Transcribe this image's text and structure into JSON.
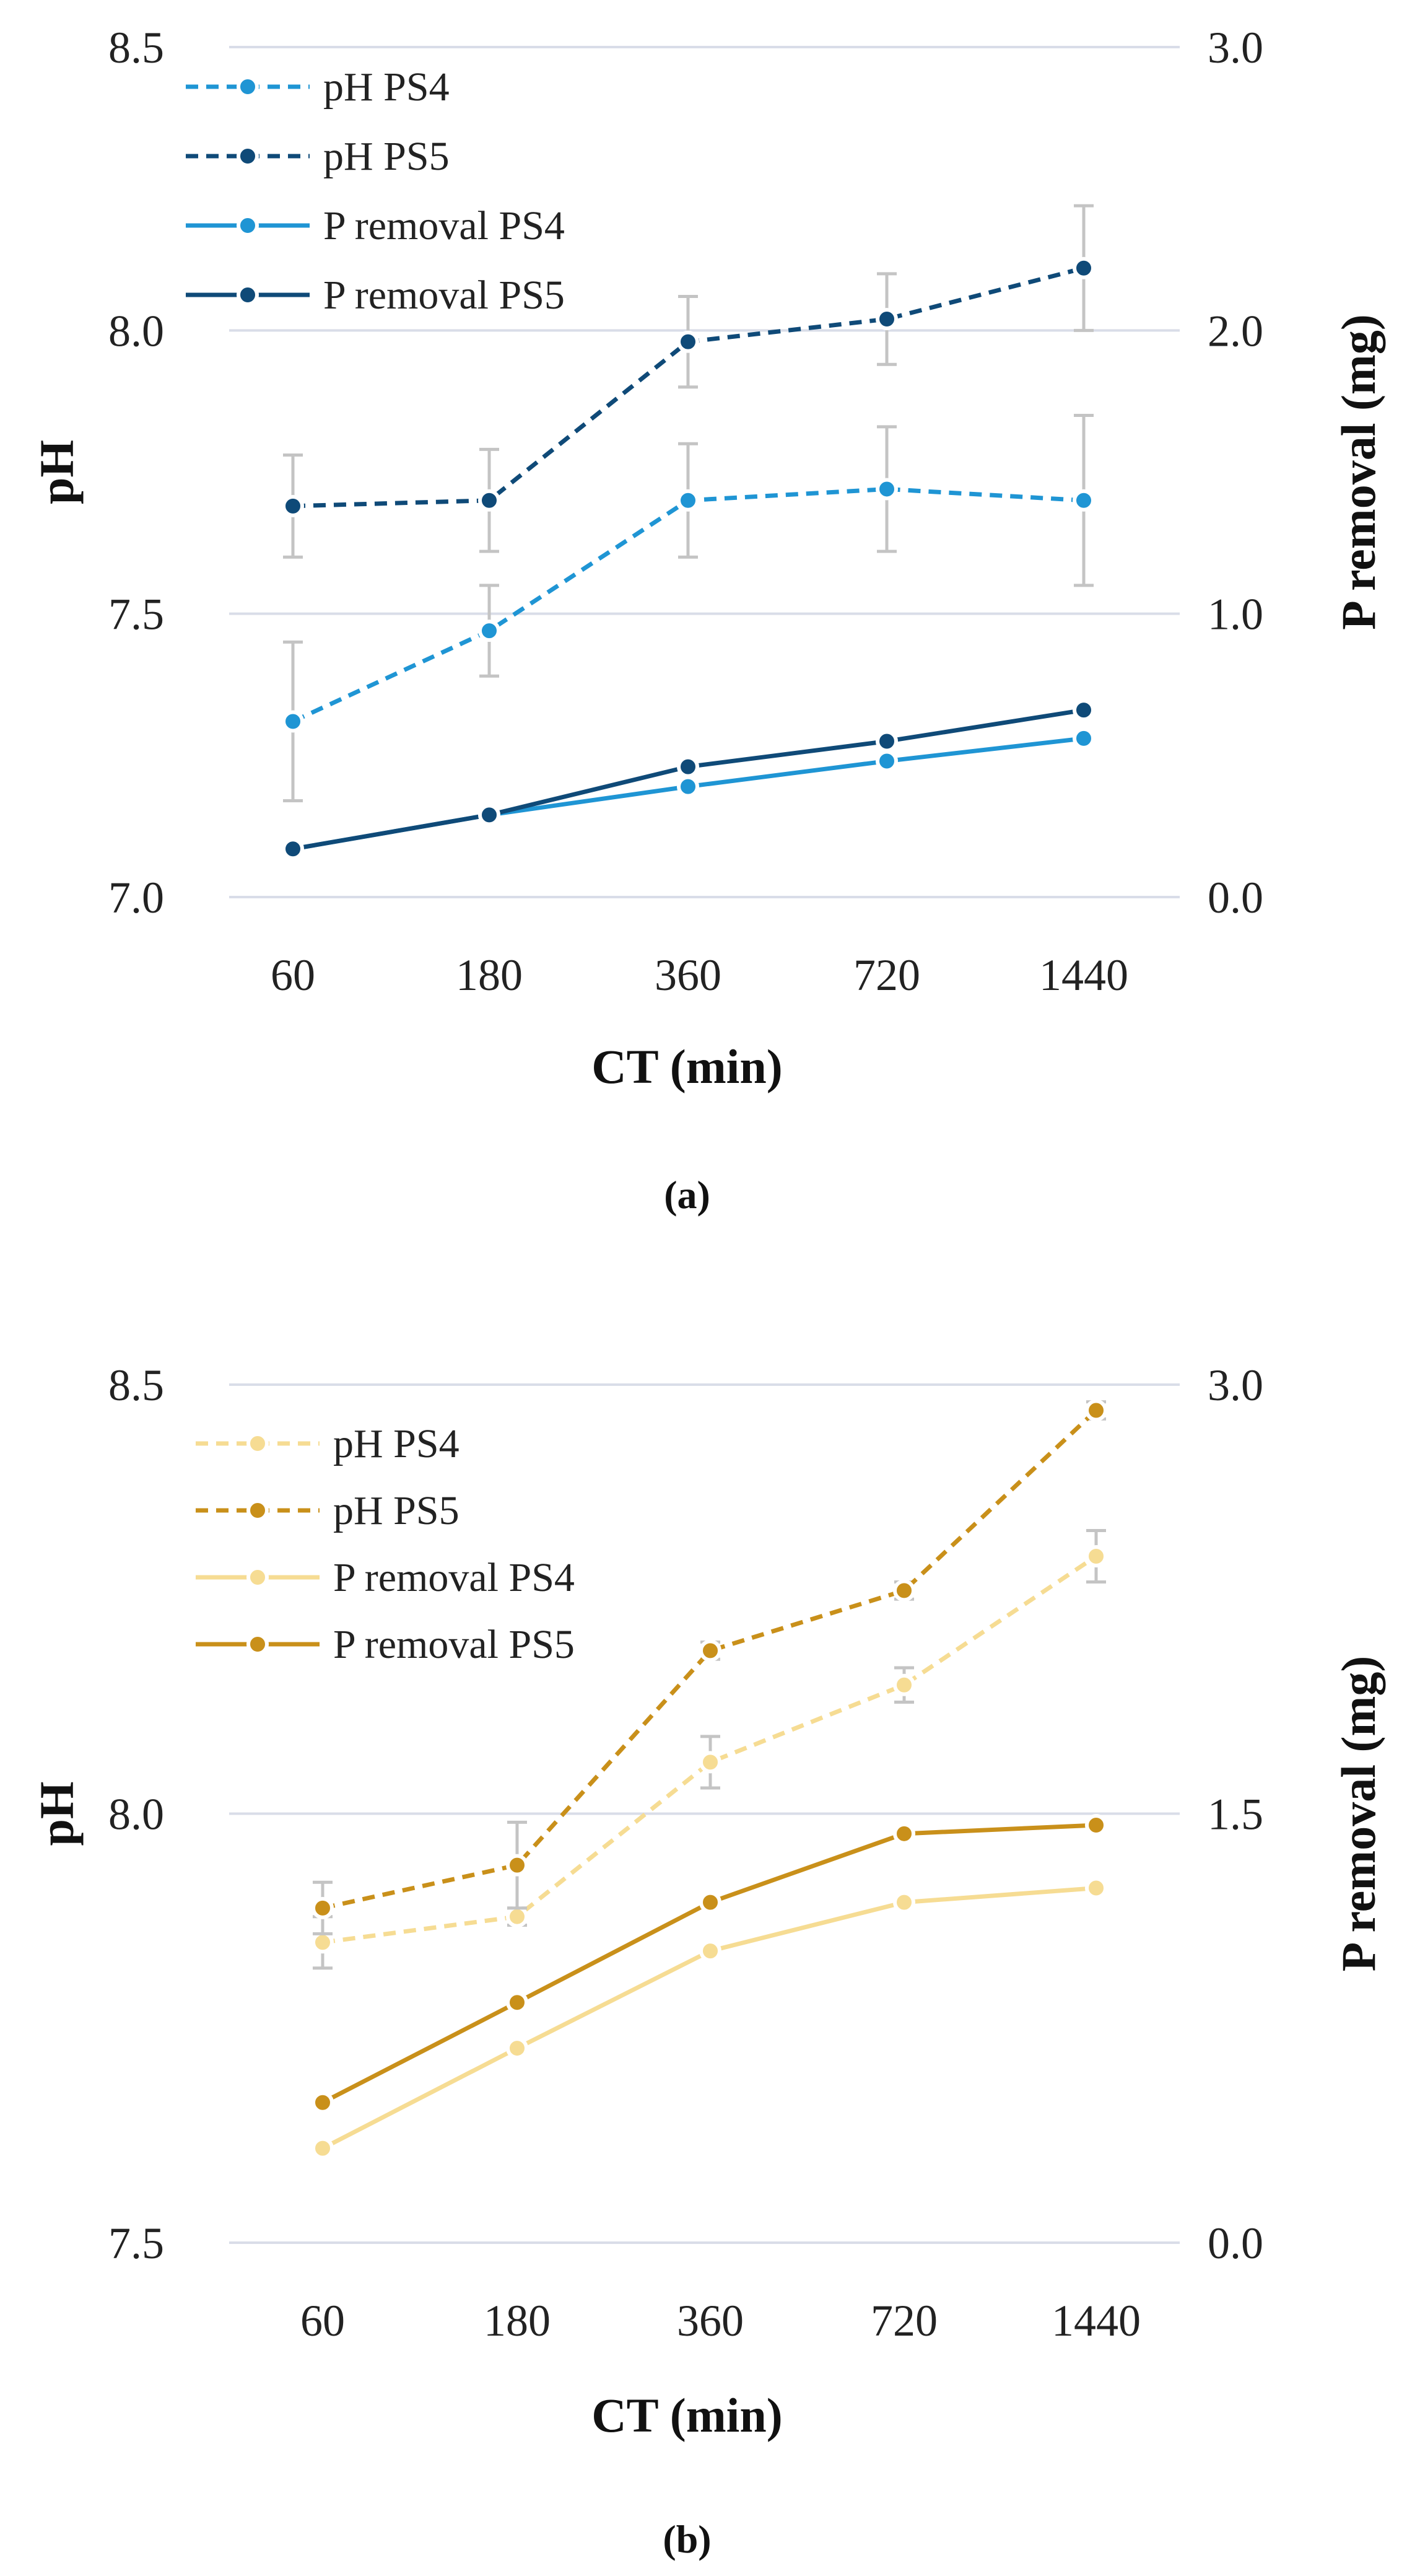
{
  "chart_data": [
    {
      "type": "line",
      "panel_label": "(a)",
      "categories": [
        "60",
        "180",
        "360",
        "720",
        "1440"
      ],
      "xlabel": "CT (min)",
      "ylabel": "pH",
      "y2label": "P removal (mg)",
      "ylim": [
        7.0,
        8.5
      ],
      "y2lim": [
        0.0,
        3.0
      ],
      "y_ticks": [
        "7.0",
        "7.5",
        "8.0",
        "8.5"
      ],
      "y2_ticks": [
        "0.0",
        "1.0",
        "2.0",
        "3.0"
      ],
      "grid": true,
      "legend_position": "top-left",
      "series": [
        {
          "name": "pH PS4",
          "axis": "left",
          "style": "dashed",
          "color": "#1f95d4",
          "values": [
            7.31,
            7.47,
            7.7,
            7.72,
            7.7
          ],
          "errors": [
            0.14,
            0.08,
            0.1,
            0.11,
            0.15
          ]
        },
        {
          "name": "pH PS5",
          "axis": "left",
          "style": "dashed",
          "color": "#0f4a78",
          "values": [
            7.69,
            7.7,
            7.98,
            8.02,
            8.11
          ],
          "errors": [
            0.09,
            0.09,
            0.08,
            0.08,
            0.11
          ]
        },
        {
          "name": "P removal PS4",
          "axis": "right",
          "style": "solid",
          "color": "#1f95d4",
          "values": [
            0.17,
            0.29,
            0.39,
            0.48,
            0.56
          ],
          "errors": []
        },
        {
          "name": "P removal PS5",
          "axis": "right",
          "style": "solid",
          "color": "#0f4a78",
          "values": [
            0.17,
            0.29,
            0.46,
            0.55,
            0.66
          ],
          "errors": []
        }
      ]
    },
    {
      "type": "line",
      "panel_label": "(b)",
      "categories": [
        "60",
        "180",
        "360",
        "720",
        "1440"
      ],
      "xlabel": "CT (min)",
      "ylabel": "pH",
      "y2label": "P removal (mg)",
      "ylim": [
        7.5,
        8.5
      ],
      "y2lim": [
        0.0,
        3.0
      ],
      "y_ticks": [
        "7.5",
        "8.0",
        "8.5"
      ],
      "y2_ticks": [
        "0.0",
        "1.5",
        "3.0"
      ],
      "grid": true,
      "legend_position": "top-left",
      "series": [
        {
          "name": "pH PS4",
          "axis": "left",
          "style": "dashed",
          "color": "#f6dc93",
          "values": [
            7.85,
            7.88,
            8.06,
            8.15,
            8.3
          ],
          "errors": [
            0.03,
            0.01,
            0.03,
            0.02,
            0.03
          ]
        },
        {
          "name": "pH PS5",
          "axis": "left",
          "style": "dashed",
          "color": "#c9901a",
          "values": [
            7.89,
            7.94,
            8.19,
            8.26,
            8.47
          ],
          "errors": [
            0.03,
            0.05,
            0.01,
            0.01,
            0.01
          ]
        },
        {
          "name": "P removal PS4",
          "axis": "right",
          "style": "solid",
          "color": "#f6dc93",
          "values": [
            0.33,
            0.68,
            1.02,
            1.19,
            1.24
          ],
          "errors": []
        },
        {
          "name": "P removal PS5",
          "axis": "right",
          "style": "solid",
          "color": "#c9901a",
          "values": [
            0.49,
            0.84,
            1.19,
            1.43,
            1.46
          ],
          "errors": []
        }
      ]
    }
  ]
}
